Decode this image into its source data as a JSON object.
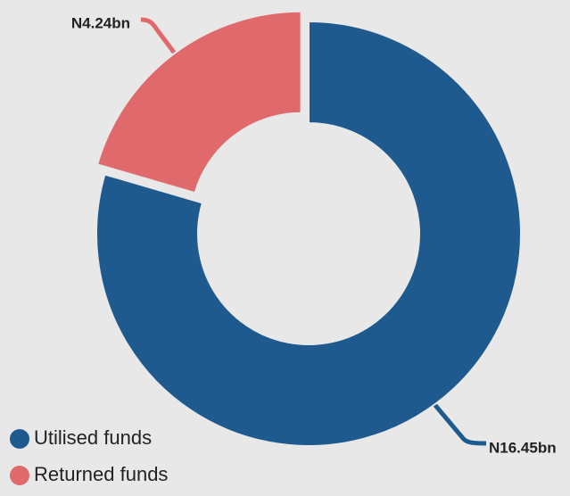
{
  "chart_data": {
    "type": "donut",
    "categories": [
      "Utilised funds",
      "Returned funds"
    ],
    "values": [
      16.45,
      4.24
    ],
    "value_labels": [
      "N16.45bn",
      "N4.24bn"
    ],
    "colors": [
      "#1f5a8f",
      "#e0696b"
    ],
    "legend": "bottom-left"
  }
}
